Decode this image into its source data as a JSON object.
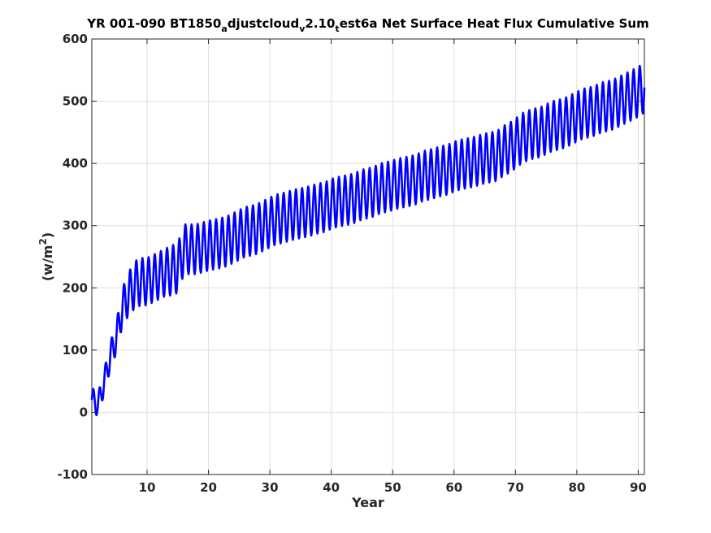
{
  "chart_data": {
    "type": "line",
    "title": "YR 001-090 BT1850_adjustcloud_v2.10_test6a Net Surface Heat Flux  Cumulative Sum",
    "title_parts": [
      {
        "text": "YR 001-090 BT1850",
        "sub": false
      },
      {
        "text": "a",
        "sub": true
      },
      {
        "text": "djustcloud",
        "sub": false
      },
      {
        "text": "v",
        "sub": true
      },
      {
        "text": "2.10",
        "sub": false
      },
      {
        "text": "t",
        "sub": true
      },
      {
        "text": "est6a Net Surface Heat Flux  Cumulative Sum",
        "sub": false
      }
    ],
    "xlabel": "Year",
    "ylabel": "(w/m",
    "ylabel_superscript": "2",
    "ylabel_suffix": ")",
    "xlim": [
      1,
      91
    ],
    "ylim": [
      -100,
      600
    ],
    "xticks": [
      10,
      20,
      30,
      40,
      50,
      60,
      70,
      80,
      90
    ],
    "yticks": [
      -100,
      0,
      100,
      200,
      300,
      400,
      500,
      600
    ],
    "grid": true,
    "line_color": "#0000ff",
    "seasonal_amplitude_note": "oscillation per year",
    "series": [
      {
        "x": [
          1,
          2,
          3,
          4,
          5,
          6,
          7,
          8,
          9,
          10,
          11,
          12,
          13,
          14,
          15,
          16,
          17,
          18,
          19,
          20,
          21,
          22,
          23,
          24,
          25,
          26,
          27,
          28,
          29,
          30,
          31,
          32,
          33,
          34,
          35,
          36,
          37,
          38,
          39,
          40,
          41,
          42,
          43,
          44,
          45,
          46,
          47,
          48,
          49,
          50,
          51,
          52,
          53,
          54,
          55,
          56,
          57,
          58,
          59,
          60,
          61,
          62,
          63,
          64,
          65,
          66,
          67,
          68,
          69,
          70,
          71,
          72,
          73,
          74,
          75,
          76,
          77,
          78,
          79,
          80,
          81,
          82,
          83,
          84,
          85,
          86,
          87,
          88,
          89,
          90,
          91
        ],
        "y": [
          20,
          12,
          48,
          90,
          120,
          170,
          190,
          205,
          210,
          210,
          215,
          220,
          225,
          228,
          232,
          262,
          262,
          262,
          265,
          268,
          270,
          272,
          275,
          280,
          285,
          290,
          292,
          295,
          300,
          305,
          310,
          312,
          315,
          318,
          320,
          322,
          325,
          328,
          330,
          335,
          338,
          340,
          342,
          345,
          350,
          352,
          355,
          360,
          362,
          365,
          368,
          370,
          372,
          375,
          380,
          382,
          385,
          388,
          390,
          395,
          398,
          400,
          402,
          405,
          408,
          410,
          412,
          420,
          425,
          432,
          440,
          445,
          448,
          450,
          455,
          460,
          462,
          465,
          470,
          475,
          480,
          482,
          485,
          490,
          492,
          495,
          500,
          505,
          510,
          515,
          522
        ],
        "amplitude": [
          20,
          18,
          20,
          22,
          25,
          30,
          35,
          38,
          38,
          38,
          38,
          38,
          38,
          40,
          40,
          40,
          40,
          40,
          40,
          40,
          40,
          40,
          40,
          40,
          40,
          40,
          40,
          40,
          40,
          40,
          40,
          40,
          40,
          40,
          40,
          40,
          40,
          40,
          40,
          40,
          40,
          40,
          40,
          40,
          40,
          40,
          40,
          40,
          40,
          40,
          40,
          40,
          40,
          40,
          40,
          40,
          40,
          40,
          40,
          40,
          40,
          40,
          40,
          40,
          40,
          40,
          40,
          40,
          40,
          40,
          40,
          40,
          40,
          40,
          40,
          40,
          40,
          40,
          40,
          40,
          40,
          40,
          40,
          40,
          40,
          40,
          40,
          40,
          40,
          40,
          40
        ]
      }
    ]
  }
}
